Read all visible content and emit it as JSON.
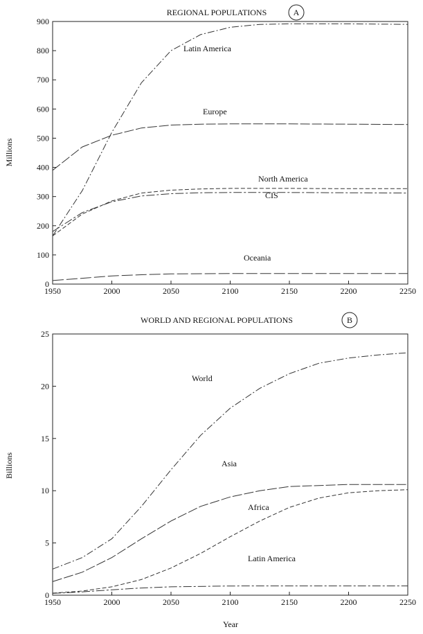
{
  "chart_data": [
    {
      "type": "line",
      "title": "REGIONAL POPULATIONS",
      "panel_badge": "A",
      "xlabel": "",
      "ylabel": "Millions",
      "xlim": [
        1950,
        2250
      ],
      "ylim": [
        0,
        900
      ],
      "x_ticks": [
        1950,
        2000,
        2050,
        2100,
        2150,
        2200,
        2250
      ],
      "y_ticks": [
        0,
        100,
        200,
        300,
        400,
        500,
        600,
        700,
        800,
        900
      ],
      "grid": false,
      "series": [
        {
          "name": "Latin America",
          "x": [
            1950,
            1975,
            2000,
            2025,
            2050,
            2075,
            2100,
            2125,
            2150,
            2200,
            2250
          ],
          "y": [
            165,
            320,
            520,
            690,
            800,
            855,
            880,
            890,
            892,
            892,
            890
          ]
        },
        {
          "name": "Europe",
          "x": [
            1950,
            1975,
            2000,
            2025,
            2050,
            2075,
            2100,
            2150,
            2200,
            2250
          ],
          "y": [
            390,
            470,
            510,
            535,
            545,
            548,
            549,
            549,
            548,
            547
          ]
        },
        {
          "name": "North America",
          "x": [
            1950,
            1975,
            2000,
            2025,
            2050,
            2075,
            2100,
            2150,
            2200,
            2250
          ],
          "y": [
            165,
            240,
            285,
            312,
            322,
            326,
            328,
            328,
            327,
            327
          ]
        },
        {
          "name": "CIS",
          "x": [
            1950,
            1975,
            2000,
            2025,
            2050,
            2075,
            2100,
            2150,
            2200,
            2250
          ],
          "y": [
            180,
            245,
            282,
            302,
            310,
            313,
            314,
            314,
            313,
            312
          ]
        },
        {
          "name": "Oceania",
          "x": [
            1950,
            1975,
            2000,
            2025,
            2050,
            2100,
            2150,
            2200,
            2250
          ],
          "y": [
            12,
            20,
            28,
            32,
            35,
            36,
            36,
            36,
            36
          ]
        }
      ]
    },
    {
      "type": "line",
      "title": "WORLD AND REGIONAL POPULATIONS",
      "panel_badge": "B",
      "xlabel": "Year",
      "ylabel": "Billions",
      "xlim": [
        1950,
        2250
      ],
      "ylim": [
        0,
        25
      ],
      "x_ticks": [
        1950,
        2000,
        2050,
        2100,
        2150,
        2200,
        2250
      ],
      "y_ticks": [
        0,
        5,
        10,
        15,
        20,
        25
      ],
      "grid": false,
      "series": [
        {
          "name": "World",
          "x": [
            1950,
            1975,
            2000,
            2025,
            2050,
            2075,
            2100,
            2125,
            2150,
            2175,
            2200,
            2225,
            2250
          ],
          "y": [
            2.5,
            3.6,
            5.4,
            8.5,
            12.0,
            15.3,
            17.9,
            19.8,
            21.2,
            22.2,
            22.7,
            23.0,
            23.2
          ]
        },
        {
          "name": "Asia",
          "x": [
            1950,
            1975,
            2000,
            2025,
            2050,
            2075,
            2100,
            2125,
            2150,
            2200,
            2250
          ],
          "y": [
            1.3,
            2.2,
            3.6,
            5.4,
            7.1,
            8.5,
            9.4,
            10.0,
            10.4,
            10.6,
            10.6
          ]
        },
        {
          "name": "Africa",
          "x": [
            1950,
            1975,
            2000,
            2025,
            2050,
            2075,
            2100,
            2125,
            2150,
            2175,
            2200,
            2225,
            2250
          ],
          "y": [
            0.2,
            0.4,
            0.8,
            1.5,
            2.6,
            4.0,
            5.6,
            7.1,
            8.4,
            9.3,
            9.8,
            10.0,
            10.1
          ]
        },
        {
          "name": "Latin America",
          "x": [
            1950,
            1975,
            2000,
            2025,
            2050,
            2100,
            2150,
            2200,
            2250
          ],
          "y": [
            0.17,
            0.32,
            0.52,
            0.69,
            0.8,
            0.88,
            0.89,
            0.89,
            0.89
          ]
        }
      ]
    }
  ]
}
